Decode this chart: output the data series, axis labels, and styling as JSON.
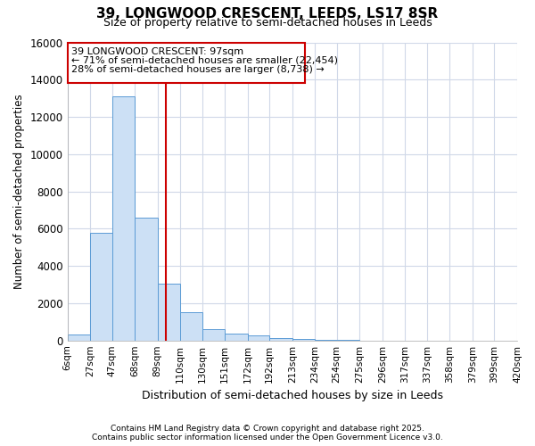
{
  "title": "39, LONGWOOD CRESCENT, LEEDS, LS17 8SR",
  "subtitle": "Size of property relative to semi-detached houses in Leeds",
  "xlabel": "Distribution of semi-detached houses by size in Leeds",
  "ylabel": "Number of semi-detached properties",
  "annotation_title": "39 LONGWOOD CRESCENT: 97sqm",
  "annotation_line1": "← 71% of semi-detached houses are smaller (22,454)",
  "annotation_line2": "28% of semi-detached houses are larger (8,738) →",
  "bin_edges": [
    6,
    27,
    47,
    68,
    89,
    110,
    130,
    151,
    172,
    192,
    213,
    234,
    254,
    275,
    296,
    317,
    337,
    358,
    379,
    399,
    420
  ],
  "bin_labels": [
    "6sqm",
    "27sqm",
    "47sqm",
    "68sqm",
    "89sqm",
    "110sqm",
    "130sqm",
    "151sqm",
    "172sqm",
    "192sqm",
    "213sqm",
    "234sqm",
    "254sqm",
    "275sqm",
    "296sqm",
    "317sqm",
    "337sqm",
    "358sqm",
    "379sqm",
    "399sqm",
    "420sqm"
  ],
  "counts": [
    300,
    5800,
    13100,
    6600,
    3050,
    1500,
    620,
    380,
    250,
    140,
    80,
    45,
    25,
    0,
    0,
    0,
    0,
    0,
    0,
    0
  ],
  "bar_color": "#cce0f5",
  "bar_edge_color": "#5b9bd5",
  "vline_color": "#cc0000",
  "vline_x": 97,
  "ylim": [
    0,
    16000
  ],
  "yticks": [
    0,
    2000,
    4000,
    6000,
    8000,
    10000,
    12000,
    14000,
    16000
  ],
  "background_color": "#ffffff",
  "grid_color": "#d0d8e8",
  "footer1": "Contains HM Land Registry data © Crown copyright and database right 2025.",
  "footer2": "Contains public sector information licensed under the Open Government Licence v3.0."
}
